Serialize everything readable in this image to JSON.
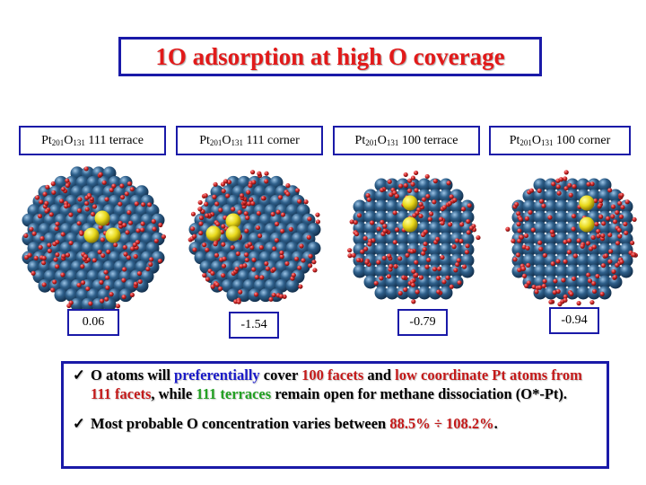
{
  "title": "1O adsorption at high O coverage",
  "panels": [
    {
      "formula_main": "Pt",
      "sub1": "201",
      "formula_mid": "O",
      "sub2": "131",
      "site": " 111 terrace",
      "value": "0.06"
    },
    {
      "formula_main": "Pt",
      "sub1": "201",
      "formula_mid": "O",
      "sub2": "131",
      "site": " 111 corner",
      "value": "-1.54"
    },
    {
      "formula_main": "Pt",
      "sub1": "201",
      "formula_mid": "O",
      "sub2": "131",
      "site": " 100 terrace",
      "value": "-0.79"
    },
    {
      "formula_main": "Pt",
      "sub1": "201",
      "formula_mid": "O",
      "sub2": "131",
      "site": " 100 corner",
      "value": "-0.94"
    }
  ],
  "notes": {
    "check": "✓",
    "n1": {
      "a": "O atoms will ",
      "b": "preferentially",
      "c": " cover ",
      "d": "100 facets",
      "e": " and ",
      "f": "low coordinate Pt atoms from 111 facets",
      "g": ", while ",
      "h": "111 terraces",
      "i": " remain open for methane dissociation (O*-Pt)."
    },
    "n2": {
      "a": "Most probable O concentration varies between ",
      "b": "88.5% ÷ 108.2%",
      "c": "."
    }
  },
  "colors": {
    "pt_atom": "#2e5f8a",
    "o_atom": "#d42a2a",
    "adsorbed_o": "#e8d81a",
    "frame": "#1a1aa8",
    "title": "#e21a1a"
  }
}
